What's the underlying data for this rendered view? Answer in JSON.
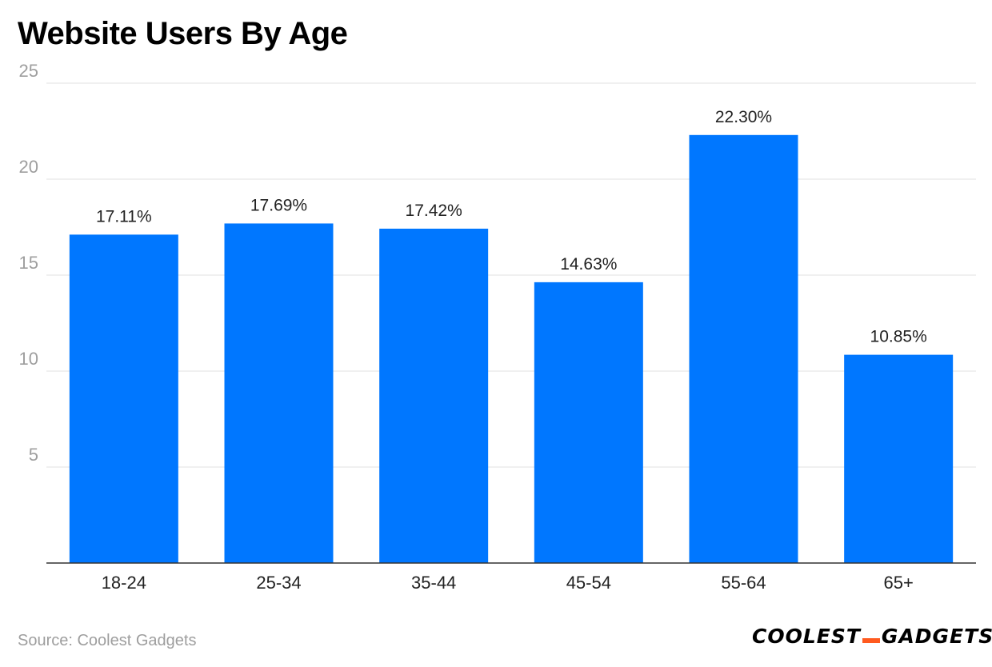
{
  "chart_data": {
    "type": "bar",
    "title": "Website Users By Age",
    "categories": [
      "18-24",
      "25-34",
      "35-44",
      "45-54",
      "55-64",
      "65+"
    ],
    "values": [
      17.11,
      17.69,
      17.42,
      14.63,
      22.3,
      10.85
    ],
    "data_labels": [
      "17.11%",
      "17.69%",
      "17.42%",
      "14.63%",
      "22.30%",
      "10.85%"
    ],
    "yticks": [
      "5",
      "10",
      "15",
      "20",
      "25"
    ],
    "ylim": [
      0,
      25
    ],
    "xlabel": "",
    "ylabel": "",
    "grid": true,
    "bar_color": "#0077ff"
  },
  "footer": {
    "source": "Source: Coolest Gadgets",
    "brand_left": "COOLEST",
    "brand_right": "GADGETS",
    "brand_accent": "#ff5a1f"
  }
}
